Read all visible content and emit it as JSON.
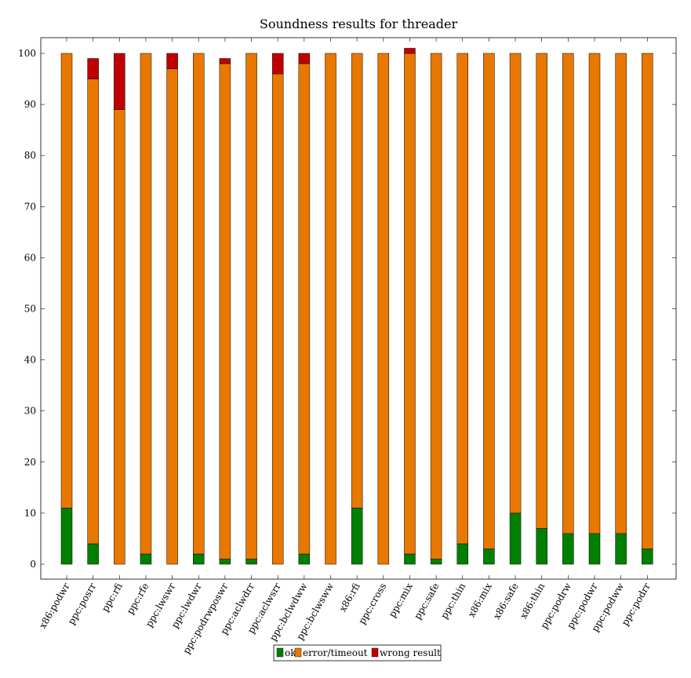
{
  "chart_data": {
    "type": "bar",
    "stacked": true,
    "title": "Soundness results for threader",
    "xlabel": "",
    "ylabel": "",
    "ylim": [
      0,
      100
    ],
    "yticks": [
      0,
      10,
      20,
      30,
      40,
      50,
      60,
      70,
      80,
      90,
      100
    ],
    "grid": false,
    "legend_position": "bottom-center",
    "categories": [
      "x86:podwr",
      "ppc:posrr",
      "ppc:rfi",
      "ppc:rfe",
      "ppc:lwswr",
      "ppc:lwdwr",
      "ppc:podrwposwr",
      "ppc:aclwdrr",
      "ppc:aclwsrr",
      "ppc:bclwdww",
      "ppc:bclwsww",
      "x86:rfi",
      "ppc:cross",
      "ppc:mix",
      "ppc:safe",
      "ppc:thin",
      "x86:mix",
      "x86:safe",
      "x86:thin",
      "ppc:podrw",
      "ppc:podwr",
      "ppc:podww",
      "ppc:podrr"
    ],
    "series": [
      {
        "name": "ok",
        "color": "#008000",
        "values": [
          11,
          4,
          0,
          2,
          0,
          2,
          1,
          1,
          0,
          2,
          0,
          11,
          0,
          2,
          1,
          4,
          3,
          10,
          7,
          6,
          6,
          6,
          3
        ]
      },
      {
        "name": "error/timeout",
        "color": "#e87800",
        "values": [
          89,
          91,
          89,
          98,
          97,
          98,
          97,
          99,
          96,
          96,
          100,
          89,
          100,
          98,
          99,
          96,
          97,
          90,
          93,
          94,
          94,
          94,
          97
        ]
      },
      {
        "name": "wrong result",
        "color": "#c00000",
        "values": [
          0,
          4,
          11,
          0,
          3,
          0,
          1,
          0,
          4,
          2,
          0,
          0,
          0,
          1,
          0,
          0,
          0,
          0,
          0,
          0,
          0,
          0,
          0
        ]
      }
    ]
  }
}
